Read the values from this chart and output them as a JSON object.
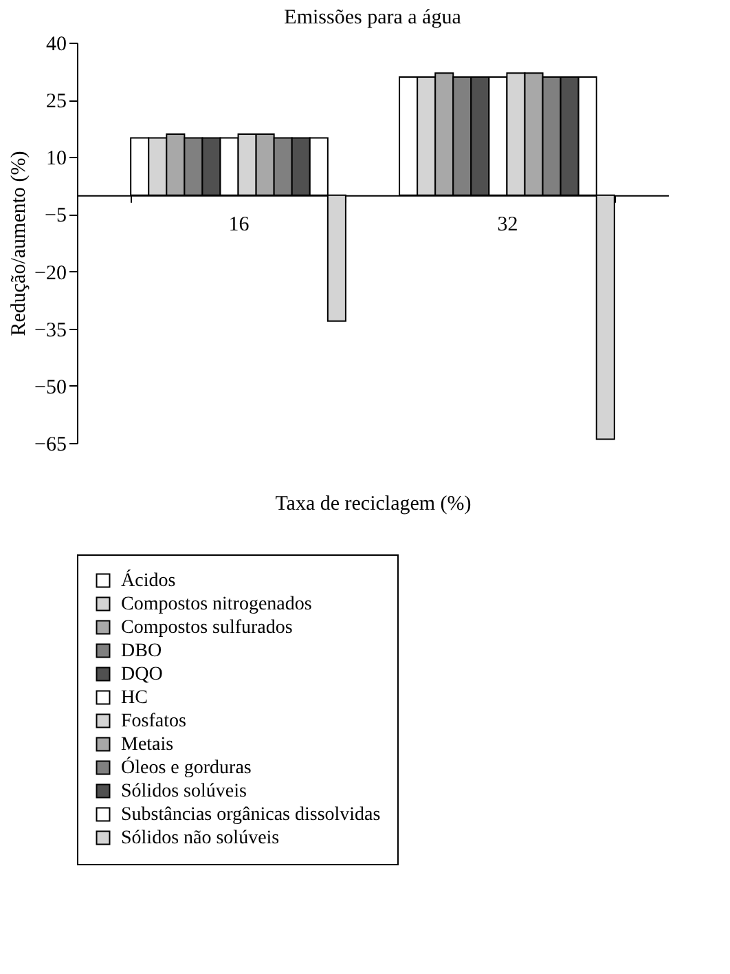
{
  "chart_data": {
    "type": "bar",
    "title": "Emissões para a água",
    "xlabel": "Taxa de reciclagem (%)",
    "ylabel": "Redução/aumento (%)",
    "categories": [
      "16",
      "32"
    ],
    "series": [
      {
        "name": "Ácidos",
        "color": "#ffffff",
        "values": [
          15,
          31
        ]
      },
      {
        "name": "Compostos nitrogenados",
        "color": "#d4d4d4",
        "values": [
          15,
          31
        ]
      },
      {
        "name": "Compostos sulfurados",
        "color": "#a8a8a8",
        "values": [
          16,
          32
        ]
      },
      {
        "name": "DBO",
        "color": "#808080",
        "values": [
          15,
          31
        ]
      },
      {
        "name": "DQO",
        "color": "#505050",
        "values": [
          15,
          31
        ]
      },
      {
        "name": "HC",
        "color": "#ffffff",
        "values": [
          15,
          31
        ]
      },
      {
        "name": "Fosfatos",
        "color": "#d4d4d4",
        "values": [
          16,
          32
        ]
      },
      {
        "name": "Metais",
        "color": "#a8a8a8",
        "values": [
          16,
          32
        ]
      },
      {
        "name": "Óleos e gorduras",
        "color": "#808080",
        "values": [
          15,
          31
        ]
      },
      {
        "name": "Sólidos solúveis",
        "color": "#505050",
        "values": [
          15,
          31
        ]
      },
      {
        "name": "Substâncias orgânicas dissolvidas",
        "color": "#ffffff",
        "values": [
          15,
          31
        ]
      },
      {
        "name": "Sólidos não solúveis",
        "color": "#d4d4d4",
        "values": [
          -33,
          -64
        ]
      }
    ],
    "ylim": [
      -65,
      40
    ],
    "yticks": [
      40,
      25,
      10,
      -5,
      -20,
      -35,
      -50,
      -65
    ],
    "grid": false,
    "legend": "bottom"
  }
}
